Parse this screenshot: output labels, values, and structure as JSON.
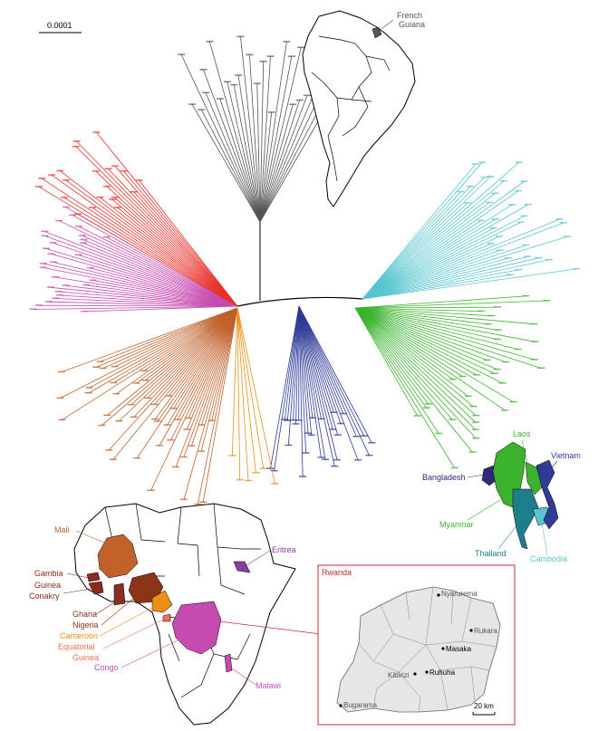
{
  "scale_bar": {
    "label": "0.0001"
  },
  "colors": {
    "south_america": "#555555",
    "cambodia": "#56c5cf",
    "thailand": "#1d7f8c",
    "myanmar": "#3cb32d",
    "laos": "#3cb32d",
    "vietnam": "#2f3b95",
    "bangladesh": "#2e2a7a",
    "mali": "#c0622a",
    "gambia": "#8e2a1c",
    "ghana": "#8a2d22",
    "nigeria": "#8b3418",
    "cameroon": "#ec8f12",
    "equatorial_guinea": "#ef6f58",
    "congo": "#c64bb0",
    "malawi": "#c64bb0",
    "eritrea": "#8a3aa0",
    "rwanda_frame": "#c0302e",
    "red_outgroup": "#e8322a"
  },
  "south_america_map": {
    "label_line1": "French",
    "label_line2": "Guiana"
  },
  "asia_map": {
    "labels": {
      "laos": "Laos",
      "vietnam": "Vietnam",
      "bangladesh": "Bangladesh",
      "myanmar": "Myanmar",
      "thailand": "Thailand",
      "cambodia": "Cambodia"
    }
  },
  "africa_map": {
    "labels": {
      "mali": "Mali",
      "gambia": "Gambia",
      "guinea_conakry_1": "Guinea",
      "guinea_conakry_2": "Conakry",
      "ghana": "Ghana",
      "nigeria": "Nigeria",
      "cameroon": "Cameroon",
      "equatorial_guinea_1": "Equatorial",
      "equatorial_guinea_2": "Guinea",
      "congo": "Congo",
      "eritrea": "Eritrea",
      "malawi": "Malawi"
    }
  },
  "rwanda_inset": {
    "title": "Rwanda",
    "towns": [
      "Nyarurema",
      "Rukara",
      "Masaka",
      "Ruhuha",
      "Kibirizi",
      "Bugarama"
    ],
    "scale_label": "20 km"
  }
}
